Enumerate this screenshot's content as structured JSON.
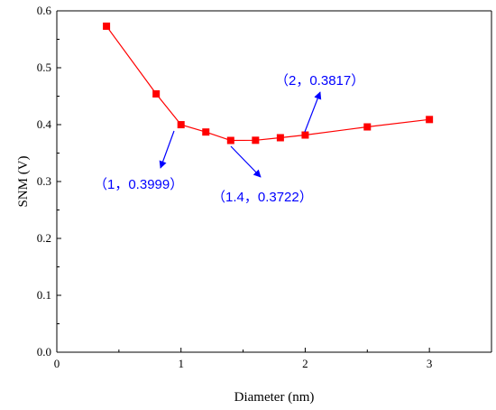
{
  "chart_data": {
    "type": "line",
    "title": "",
    "xlabel": "Diameter (nm)",
    "ylabel": "SNM (V)",
    "xlim": [
      0,
      3.5
    ],
    "ylim": [
      0,
      0.6
    ],
    "xticks": [
      0,
      1,
      2,
      3
    ],
    "yticks": [
      0.0,
      0.1,
      0.2,
      0.3,
      0.4,
      0.5,
      0.6
    ],
    "xtick_labels": [
      "0",
      "1",
      "2",
      "3"
    ],
    "ytick_labels": [
      "0.0",
      "0.1",
      "0.2",
      "0.3",
      "0.4",
      "0.5",
      "0.6"
    ],
    "grid": false,
    "legend": "none",
    "series": [
      {
        "color": "#ff0000",
        "marker": "square",
        "x": [
          0.4,
          0.8,
          1.0,
          1.2,
          1.4,
          1.6,
          1.8,
          2.0,
          2.5,
          3.0
        ],
        "y": [
          0.573,
          0.454,
          0.3999,
          0.387,
          0.3722,
          0.3725,
          0.377,
          0.3817,
          0.396,
          0.409
        ]
      }
    ],
    "annotations": [
      {
        "text": "（1，0.3999）",
        "point": [
          1.0,
          0.3999
        ],
        "color": "#0000ff"
      },
      {
        "text": "（1.4，0.3722）",
        "point": [
          1.4,
          0.3722
        ],
        "color": "#0000ff"
      },
      {
        "text": "（2，0.3817）",
        "point": [
          2.0,
          0.3817
        ],
        "color": "#0000ff"
      }
    ]
  }
}
